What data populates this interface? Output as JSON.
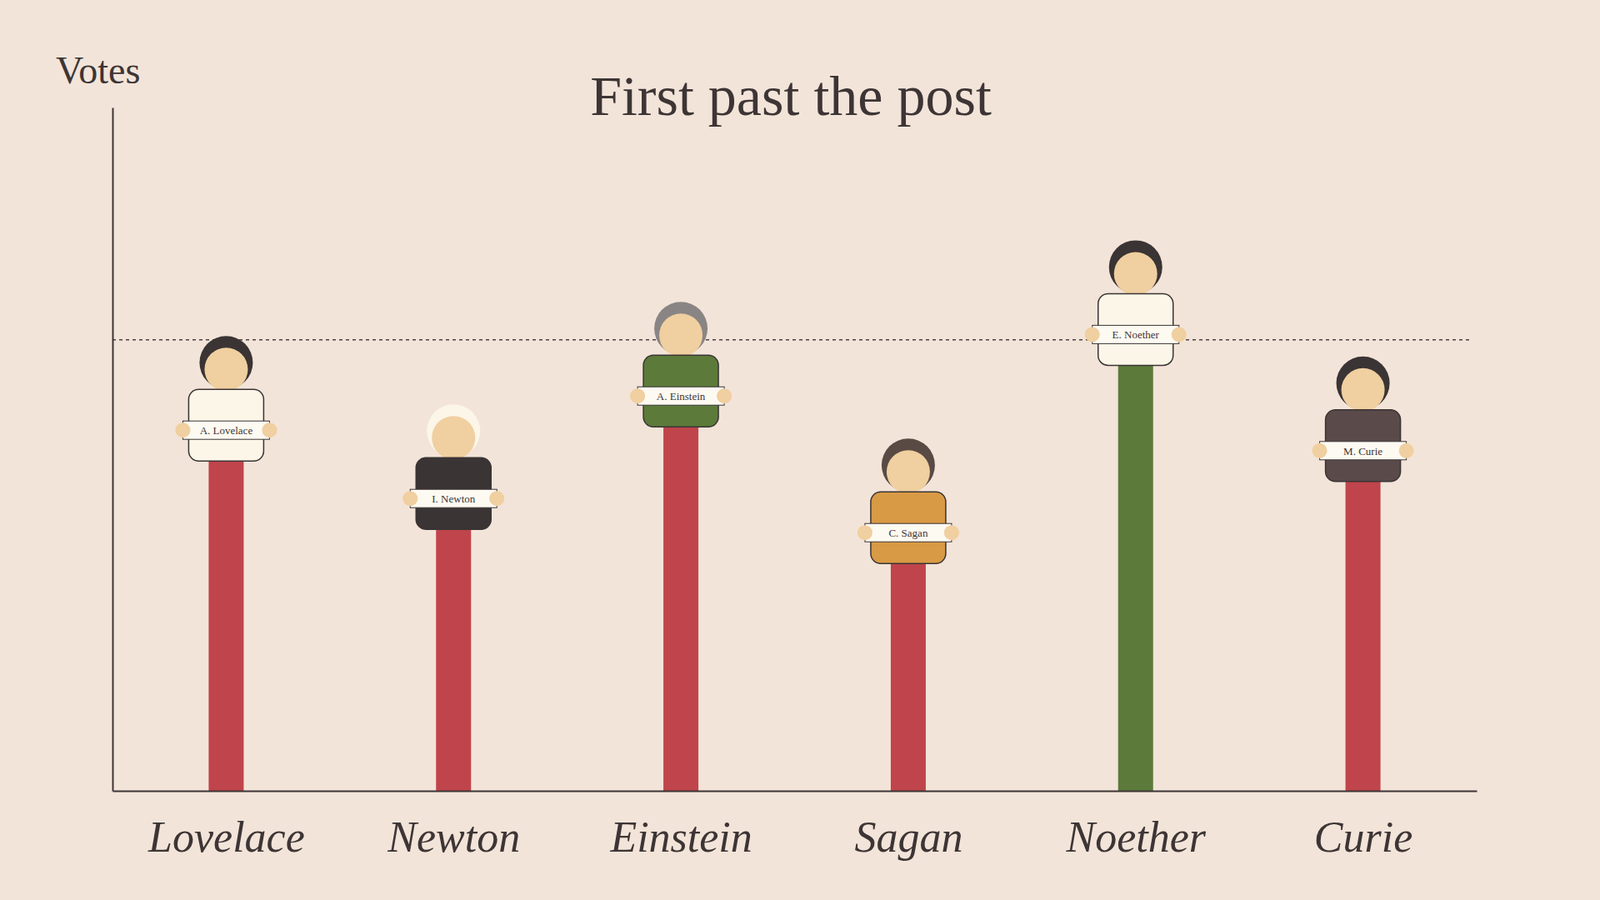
{
  "chart_data": {
    "type": "bar",
    "title": "First past the post",
    "y_label": "Votes",
    "categories": [
      "Lovelace",
      "Newton",
      "Einstein",
      "Sagan",
      "Noether",
      "Curie"
    ],
    "values": [
      49,
      39,
      54,
      34,
      63,
      46
    ],
    "colors": [
      "#c0444b",
      "#c0444b",
      "#c0444b",
      "#c0444b",
      "#5c7a3a",
      "#c0444b"
    ],
    "annotations": [
      "A. Lovelace",
      "I. Newton",
      "A. Einstein",
      "C. Sagan",
      "E. Noether",
      "M. Curie"
    ],
    "threshold": 66,
    "ylim": [
      0,
      100
    ],
    "yticks": [],
    "grid": false,
    "tick_labels": false
  }
}
